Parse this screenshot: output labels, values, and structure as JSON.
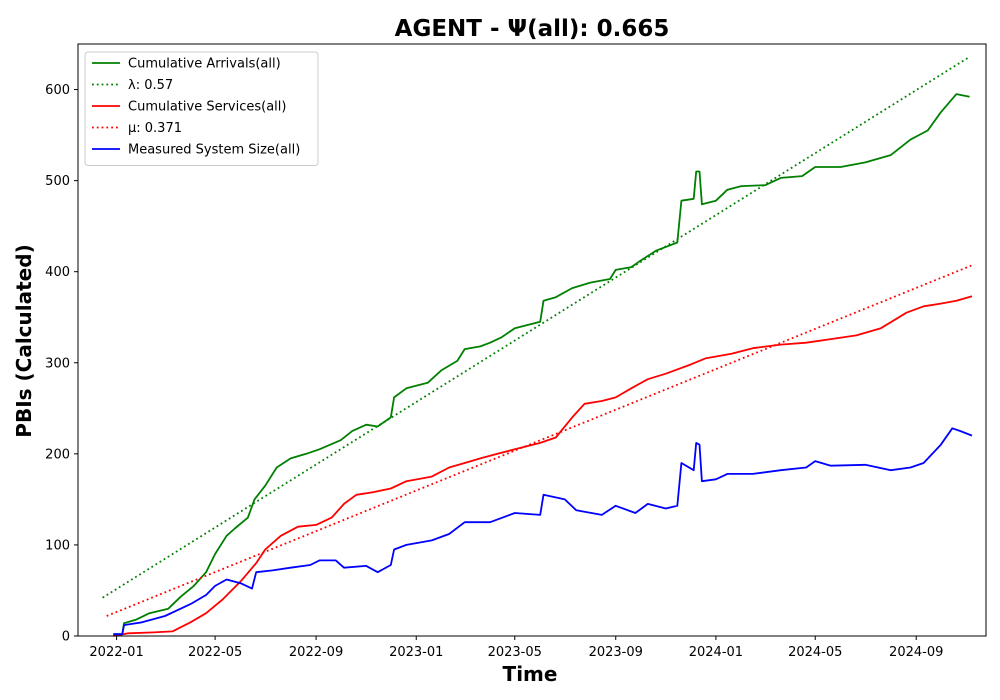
{
  "chart_data": {
    "type": "line",
    "title": "AGENT -  Ψ(all): 0.665",
    "xlabel": "Time",
    "ylabel": "PBIs (Calculated)",
    "xlim": [
      "2021-11-15",
      "2024-11-25"
    ],
    "ylim": [
      0,
      650
    ],
    "x_ticks": [
      "2022-01",
      "2022-05",
      "2022-09",
      "2023-01",
      "2023-05",
      "2023-09",
      "2024-01",
      "2024-05",
      "2024-09"
    ],
    "y_ticks": [
      0,
      100,
      200,
      300,
      400,
      500,
      600
    ],
    "grid": false,
    "legend_position": "upper-left",
    "series": [
      {
        "name": "Cumulative Arrivals(all)",
        "style": "solid",
        "color": "#008000",
        "points": [
          [
            "2021-12-28",
            2
          ],
          [
            "2022-01-08",
            2
          ],
          [
            "2022-01-10",
            14
          ],
          [
            "2022-01-25",
            18
          ],
          [
            "2022-02-10",
            25
          ],
          [
            "2022-03-05",
            30
          ],
          [
            "2022-03-20",
            43
          ],
          [
            "2022-04-05",
            55
          ],
          [
            "2022-04-20",
            70
          ],
          [
            "2022-05-01",
            90
          ],
          [
            "2022-05-15",
            110
          ],
          [
            "2022-05-25",
            118
          ],
          [
            "2022-06-10",
            130
          ],
          [
            "2022-06-18",
            150
          ],
          [
            "2022-07-01",
            165
          ],
          [
            "2022-07-15",
            185
          ],
          [
            "2022-08-01",
            195
          ],
          [
            "2022-08-20",
            200
          ],
          [
            "2022-09-05",
            205
          ],
          [
            "2022-10-01",
            215
          ],
          [
            "2022-10-15",
            225
          ],
          [
            "2022-11-01",
            232
          ],
          [
            "2022-11-15",
            230
          ],
          [
            "2022-12-01",
            240
          ],
          [
            "2022-12-05",
            262
          ],
          [
            "2022-12-20",
            272
          ],
          [
            "2023-01-15",
            278
          ],
          [
            "2023-02-01",
            292
          ],
          [
            "2023-02-20",
            302
          ],
          [
            "2023-03-01",
            315
          ],
          [
            "2023-03-20",
            318
          ],
          [
            "2023-04-01",
            322
          ],
          [
            "2023-04-15",
            328
          ],
          [
            "2023-05-01",
            338
          ],
          [
            "2023-06-01",
            345
          ],
          [
            "2023-06-05",
            368
          ],
          [
            "2023-06-20",
            372
          ],
          [
            "2023-07-10",
            382
          ],
          [
            "2023-08-01",
            388
          ],
          [
            "2023-08-25",
            392
          ],
          [
            "2023-09-01",
            402
          ],
          [
            "2023-09-20",
            405
          ],
          [
            "2023-10-01",
            412
          ],
          [
            "2023-10-20",
            423
          ],
          [
            "2023-11-15",
            432
          ],
          [
            "2023-11-20",
            478
          ],
          [
            "2023-12-05",
            480
          ],
          [
            "2023-12-08",
            510
          ],
          [
            "2023-12-12",
            510
          ],
          [
            "2023-12-15",
            474
          ],
          [
            "2024-01-01",
            478
          ],
          [
            "2024-01-15",
            490
          ],
          [
            "2024-02-01",
            494
          ],
          [
            "2024-03-01",
            495
          ],
          [
            "2024-03-20",
            503
          ],
          [
            "2024-04-15",
            505
          ],
          [
            "2024-05-01",
            515
          ],
          [
            "2024-06-01",
            515
          ],
          [
            "2024-07-01",
            520
          ],
          [
            "2024-08-01",
            528
          ],
          [
            "2024-08-25",
            545
          ],
          [
            "2024-09-15",
            555
          ],
          [
            "2024-10-01",
            575
          ],
          [
            "2024-10-20",
            595
          ],
          [
            "2024-11-05",
            592
          ]
        ]
      },
      {
        "name": "λ: 0.57",
        "style": "dotted",
        "color": "#008000",
        "points": [
          [
            "2021-12-15",
            42
          ],
          [
            "2024-11-05",
            636
          ]
        ]
      },
      {
        "name": "Cumulative Services(all)",
        "style": "solid",
        "color": "#ff0000",
        "points": [
          [
            "2021-12-28",
            0
          ],
          [
            "2022-01-15",
            3
          ],
          [
            "2022-02-15",
            4
          ],
          [
            "2022-03-10",
            5
          ],
          [
            "2022-04-01",
            15
          ],
          [
            "2022-04-20",
            25
          ],
          [
            "2022-05-10",
            40
          ],
          [
            "2022-06-01",
            60
          ],
          [
            "2022-06-20",
            80
          ],
          [
            "2022-07-01",
            95
          ],
          [
            "2022-07-20",
            110
          ],
          [
            "2022-08-10",
            120
          ],
          [
            "2022-09-01",
            122
          ],
          [
            "2022-09-20",
            130
          ],
          [
            "2022-10-05",
            145
          ],
          [
            "2022-10-20",
            155
          ],
          [
            "2022-11-10",
            158
          ],
          [
            "2022-12-01",
            162
          ],
          [
            "2022-12-20",
            170
          ],
          [
            "2023-01-20",
            175
          ],
          [
            "2023-02-10",
            185
          ],
          [
            "2023-03-01",
            190
          ],
          [
            "2023-03-20",
            195
          ],
          [
            "2023-04-10",
            200
          ],
          [
            "2023-05-01",
            205
          ],
          [
            "2023-06-01",
            212
          ],
          [
            "2023-06-20",
            218
          ],
          [
            "2023-07-10",
            240
          ],
          [
            "2023-07-25",
            255
          ],
          [
            "2023-08-15",
            258
          ],
          [
            "2023-09-01",
            262
          ],
          [
            "2023-09-20",
            272
          ],
          [
            "2023-10-10",
            282
          ],
          [
            "2023-11-01",
            288
          ],
          [
            "2023-12-01",
            298
          ],
          [
            "2023-12-20",
            305
          ],
          [
            "2024-01-20",
            310
          ],
          [
            "2024-02-15",
            316
          ],
          [
            "2024-03-20",
            320
          ],
          [
            "2024-04-20",
            322
          ],
          [
            "2024-05-20",
            326
          ],
          [
            "2024-06-20",
            330
          ],
          [
            "2024-07-20",
            338
          ],
          [
            "2024-08-20",
            355
          ],
          [
            "2024-09-10",
            362
          ],
          [
            "2024-10-01",
            365
          ],
          [
            "2024-10-20",
            368
          ],
          [
            "2024-11-08",
            373
          ]
        ]
      },
      {
        "name": "μ: 0.371",
        "style": "dotted",
        "color": "#ff0000",
        "points": [
          [
            "2021-12-20",
            22
          ],
          [
            "2024-11-08",
            407
          ]
        ]
      },
      {
        "name": "Measured System Size(all)",
        "style": "solid",
        "color": "#0000ff",
        "points": [
          [
            "2021-12-28",
            2
          ],
          [
            "2022-01-08",
            2
          ],
          [
            "2022-01-10",
            12
          ],
          [
            "2022-02-01",
            15
          ],
          [
            "2022-03-01",
            22
          ],
          [
            "2022-04-01",
            35
          ],
          [
            "2022-04-20",
            45
          ],
          [
            "2022-05-01",
            55
          ],
          [
            "2022-05-15",
            62
          ],
          [
            "2022-06-01",
            58
          ],
          [
            "2022-06-15",
            52
          ],
          [
            "2022-06-20",
            70
          ],
          [
            "2022-07-10",
            72
          ],
          [
            "2022-08-01",
            75
          ],
          [
            "2022-08-25",
            78
          ],
          [
            "2022-09-05",
            83
          ],
          [
            "2022-09-25",
            83
          ],
          [
            "2022-10-05",
            75
          ],
          [
            "2022-11-01",
            77
          ],
          [
            "2022-11-15",
            70
          ],
          [
            "2022-12-01",
            78
          ],
          [
            "2022-12-05",
            95
          ],
          [
            "2022-12-20",
            100
          ],
          [
            "2023-01-20",
            105
          ],
          [
            "2023-02-10",
            112
          ],
          [
            "2023-03-01",
            125
          ],
          [
            "2023-04-01",
            125
          ],
          [
            "2023-05-01",
            135
          ],
          [
            "2023-06-01",
            133
          ],
          [
            "2023-06-05",
            155
          ],
          [
            "2023-07-01",
            150
          ],
          [
            "2023-07-15",
            138
          ],
          [
            "2023-08-15",
            133
          ],
          [
            "2023-09-01",
            143
          ],
          [
            "2023-09-25",
            135
          ],
          [
            "2023-10-10",
            145
          ],
          [
            "2023-11-01",
            140
          ],
          [
            "2023-11-15",
            143
          ],
          [
            "2023-11-20",
            190
          ],
          [
            "2023-12-05",
            182
          ],
          [
            "2023-12-08",
            212
          ],
          [
            "2023-12-12",
            210
          ],
          [
            "2023-12-15",
            170
          ],
          [
            "2024-01-01",
            172
          ],
          [
            "2024-01-15",
            178
          ],
          [
            "2024-02-15",
            178
          ],
          [
            "2024-03-20",
            182
          ],
          [
            "2024-04-20",
            185
          ],
          [
            "2024-05-01",
            192
          ],
          [
            "2024-05-20",
            187
          ],
          [
            "2024-07-01",
            188
          ],
          [
            "2024-08-01",
            182
          ],
          [
            "2024-08-25",
            185
          ],
          [
            "2024-09-10",
            190
          ],
          [
            "2024-10-01",
            210
          ],
          [
            "2024-10-15",
            228
          ],
          [
            "2024-10-25",
            225
          ],
          [
            "2024-11-08",
            220
          ]
        ]
      }
    ]
  }
}
